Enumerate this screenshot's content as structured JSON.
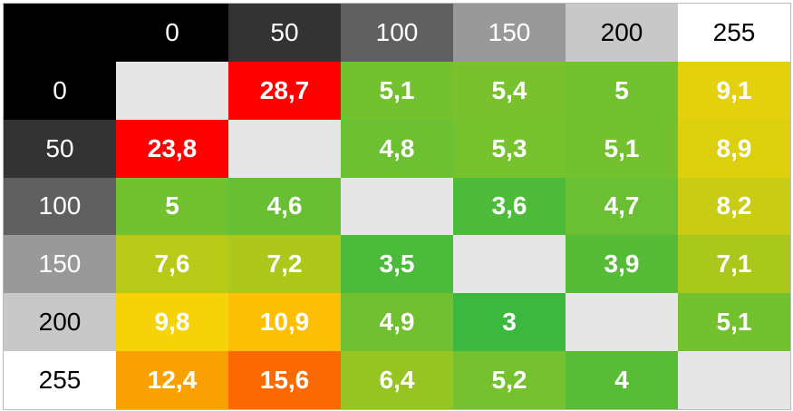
{
  "table": {
    "header": [
      {
        "text": "0",
        "color": "#000000",
        "text_color": "#ffffff"
      },
      {
        "text": "50",
        "color": "#333333",
        "text_color": "#ffffff"
      },
      {
        "text": "100",
        "color": "#606060",
        "text_color": "#ffffff"
      },
      {
        "text": "150",
        "color": "#999999",
        "text_color": "#ffffff"
      },
      {
        "text": "200",
        "color": "#c8c8c8",
        "text_color": "#000000"
      },
      {
        "text": "255",
        "color": "#ffffff",
        "text_color": "#000000"
      }
    ],
    "rows": [
      {
        "label": {
          "text": "0",
          "color": "#000000",
          "text_color": "#ffffff"
        },
        "cells": [
          {
            "text": null,
            "color": "#e6e6e6"
          },
          {
            "text": "28,7",
            "color": "#ff0000"
          },
          {
            "text": "5,1",
            "color": "#74c12f"
          },
          {
            "text": "5,4",
            "color": "#79c22e"
          },
          {
            "text": "5",
            "color": "#72c130"
          },
          {
            "text": "9,1",
            "color": "#e2d10c"
          }
        ]
      },
      {
        "label": {
          "text": "50",
          "color": "#333333",
          "text_color": "#ffffff"
        },
        "cells": [
          {
            "text": "23,8",
            "color": "#ff0000"
          },
          {
            "text": null,
            "color": "#e6e6e6"
          },
          {
            "text": "4,8",
            "color": "#6dc032"
          },
          {
            "text": "5,3",
            "color": "#77c22f"
          },
          {
            "text": "5,1",
            "color": "#74c12f"
          },
          {
            "text": "8,9",
            "color": "#dcd00e"
          }
        ]
      },
      {
        "label": {
          "text": "100",
          "color": "#606060",
          "text_color": "#ffffff"
        },
        "cells": [
          {
            "text": "5",
            "color": "#72c130"
          },
          {
            "text": "4,6",
            "color": "#69bf33"
          },
          {
            "text": null,
            "color": "#e6e6e6"
          },
          {
            "text": "3,6",
            "color": "#4fbb3a"
          },
          {
            "text": "4,7",
            "color": "#6bbf33"
          },
          {
            "text": "8,2",
            "color": "#c8cc14"
          }
        ]
      },
      {
        "label": {
          "text": "150",
          "color": "#999999",
          "text_color": "#ffffff"
        },
        "cells": [
          {
            "text": "7,6",
            "color": "#b9c918"
          },
          {
            "text": "7,2",
            "color": "#adc71b"
          },
          {
            "text": "3,5",
            "color": "#4cba3b"
          },
          {
            "text": null,
            "color": "#e6e6e6"
          },
          {
            "text": "3,9",
            "color": "#56bc38"
          },
          {
            "text": "7,1",
            "color": "#aac71c"
          }
        ]
      },
      {
        "label": {
          "text": "200",
          "color": "#c8c8c8",
          "text_color": "#000000"
        },
        "cells": [
          {
            "text": "9,8",
            "color": "#f5d308"
          },
          {
            "text": "10,9",
            "color": "#fbbf05"
          },
          {
            "text": "4,9",
            "color": "#70c031"
          },
          {
            "text": "3",
            "color": "#3cb83f"
          },
          {
            "text": null,
            "color": "#e6e6e6"
          },
          {
            "text": "5,1",
            "color": "#74c12f"
          }
        ]
      },
      {
        "label": {
          "text": "255",
          "color": "#ffffff",
          "text_color": "#000000"
        },
        "cells": [
          {
            "text": "12,4",
            "color": "#f9a003"
          },
          {
            "text": "15,6",
            "color": "#fb6a02"
          },
          {
            "text": "6,4",
            "color": "#96c422"
          },
          {
            "text": "5,2",
            "color": "#76c12f"
          },
          {
            "text": "4",
            "color": "#58bc37"
          },
          {
            "text": null,
            "color": "#e6e6e6"
          }
        ]
      }
    ]
  }
}
